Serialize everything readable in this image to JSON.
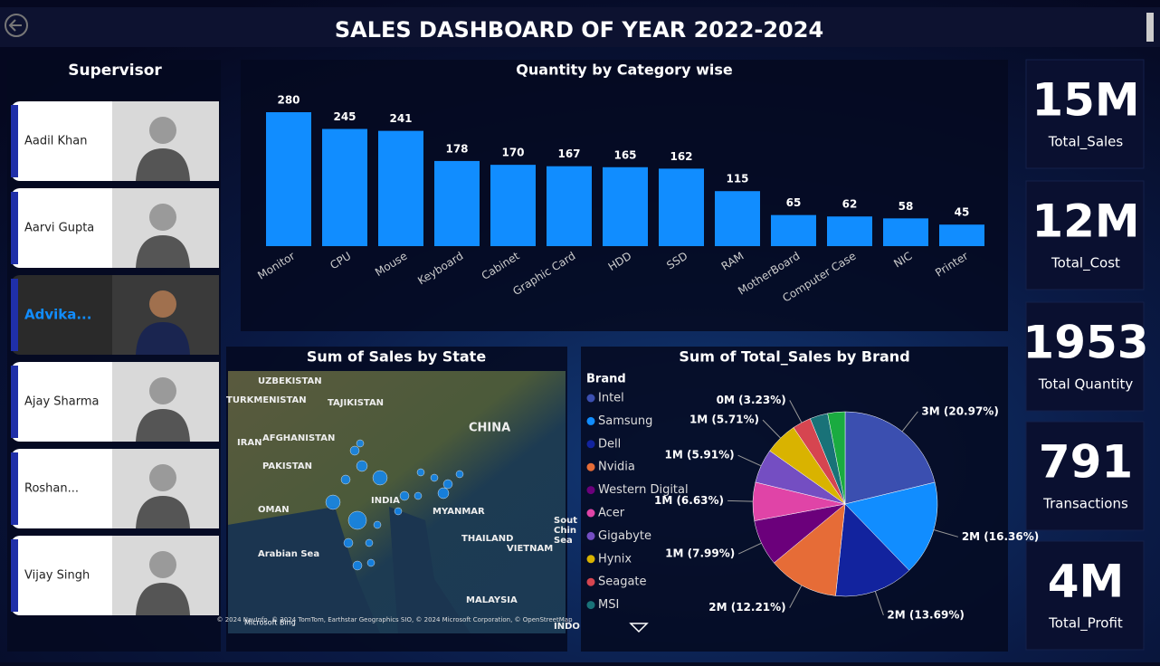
{
  "header": {
    "title": "SALES DASHBOARD  OF YEAR 2022-2024"
  },
  "supervisor": {
    "title": "Supervisor",
    "names": [
      "Aadil Khan",
      "Aarvi Gupta",
      "Advika...",
      "Ajay Sharma",
      "Roshan...",
      "Vijay Singh"
    ]
  },
  "kpis": [
    {
      "value": "15M",
      "label": "Total_Sales"
    },
    {
      "value": "12M",
      "label": "Total_Cost"
    },
    {
      "value": "1953",
      "label": "Total Quantity"
    },
    {
      "value": "791",
      "label": "Transactions"
    },
    {
      "value": "4M",
      "label": "Total_Profit"
    }
  ],
  "map": {
    "title": "Sum of Sales by State",
    "places": [
      "UZBEKISTAN",
      "TURKMENISTAN",
      "TAJIKISTAN",
      "IRAN",
      "AFGHANISTAN",
      "PAKISTAN",
      "CHINA",
      "INDIA",
      "OMAN",
      "MYANMAR",
      "THAILAND",
      "VIETNAM",
      "Arabian Sea",
      "MALAYSIA",
      "Sout",
      "Chin",
      "Sea",
      "INDO"
    ],
    "attribution": "© 2024 NavInfo, © 2024 TomTom, Earthstar Geographics SIO, © 2024 Microsoft Corporation, © OpenStreetMap",
    "provider": "Microsoft Bing"
  },
  "chart_data": [
    {
      "type": "bar",
      "title": "Quantity by Category wise",
      "color": "#118dff",
      "categories": [
        "Monitor",
        "CPU",
        "Mouse",
        "Keyboard",
        "Cabinet",
        "Graphic Card",
        "HDD",
        "SSD",
        "RAM",
        "MotherBoard",
        "Computer Case",
        "NIC",
        "Printer"
      ],
      "values": [
        280,
        245,
        241,
        178,
        170,
        167,
        165,
        162,
        115,
        65,
        62,
        58,
        45
      ]
    },
    {
      "type": "pie",
      "title": "Sum of Total_Sales by Brand",
      "legend_title": "Brand",
      "categories": [
        "Intel",
        "Samsung",
        "Dell",
        "Nvidia",
        "Western Digital",
        "Acer",
        "Gigabyte",
        "Hynix",
        "Seagate",
        "MSI",
        null
      ],
      "values": [
        20.97,
        16.36,
        13.69,
        12.21,
        7.99,
        6.63,
        5.91,
        5.71,
        3.23,
        3.1,
        3.0
      ],
      "value_labels": [
        "3M (20.97%)",
        "2M (16.36%)",
        "2M (13.69%)",
        "2M (12.21%)",
        "1M (7.99%)",
        "1M (6.63%)",
        "1M (5.91%)",
        "1M (5.71%)",
        "0M (3.23%)",
        null,
        null
      ],
      "colors": [
        "#3b4fb0",
        "#118dff",
        "#12239e",
        "#e66c37",
        "#6b007b",
        "#e044a7",
        "#744ec2",
        "#d9b300",
        "#d64550",
        "#197278",
        "#1aab40"
      ]
    }
  ]
}
